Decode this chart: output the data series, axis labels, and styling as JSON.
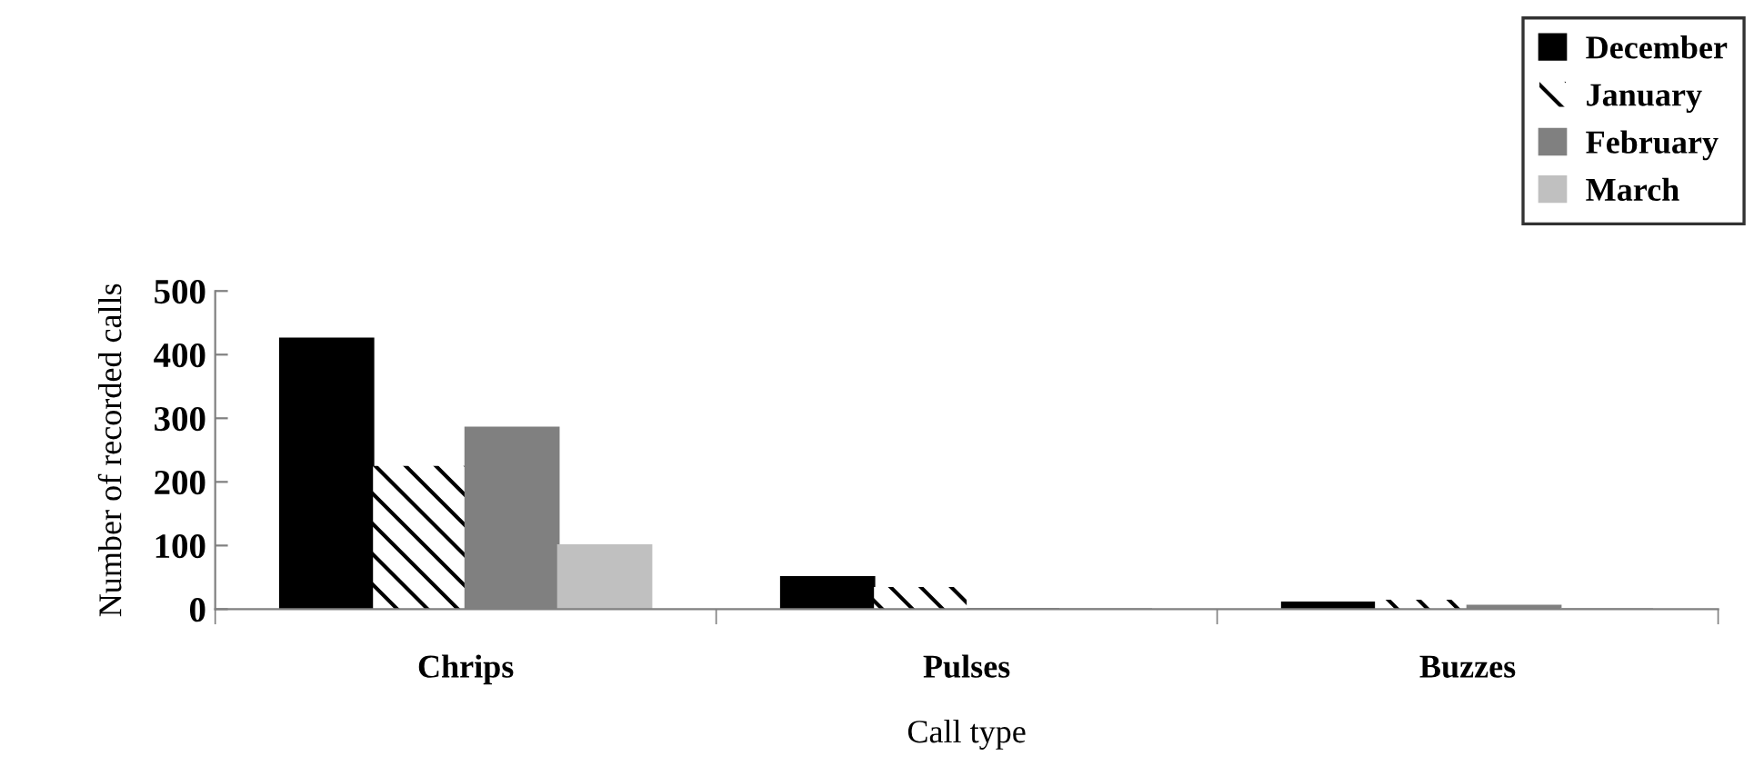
{
  "chart_data": {
    "type": "bar",
    "xlabel": "Call type",
    "ylabel": "Number of recorded calls",
    "categories": [
      "Chrips",
      "Pulses",
      "Buzzes"
    ],
    "series": [
      {
        "name": "December",
        "color": "#000000",
        "values": [
          425,
          50,
          10
        ]
      },
      {
        "name": "January",
        "color": "#ffffff",
        "values": [
          225,
          35,
          15
        ]
      },
      {
        "name": "February",
        "color": "#808080",
        "values": [
          285,
          0,
          5
        ]
      },
      {
        "name": "March",
        "color": "#c0c0c0",
        "values": [
          100,
          0,
          0
        ]
      }
    ],
    "ylim": [
      0,
      500
    ],
    "yticks": [
      0,
      100,
      200,
      300,
      400,
      500
    ],
    "grid": false,
    "legend": "top right"
  }
}
